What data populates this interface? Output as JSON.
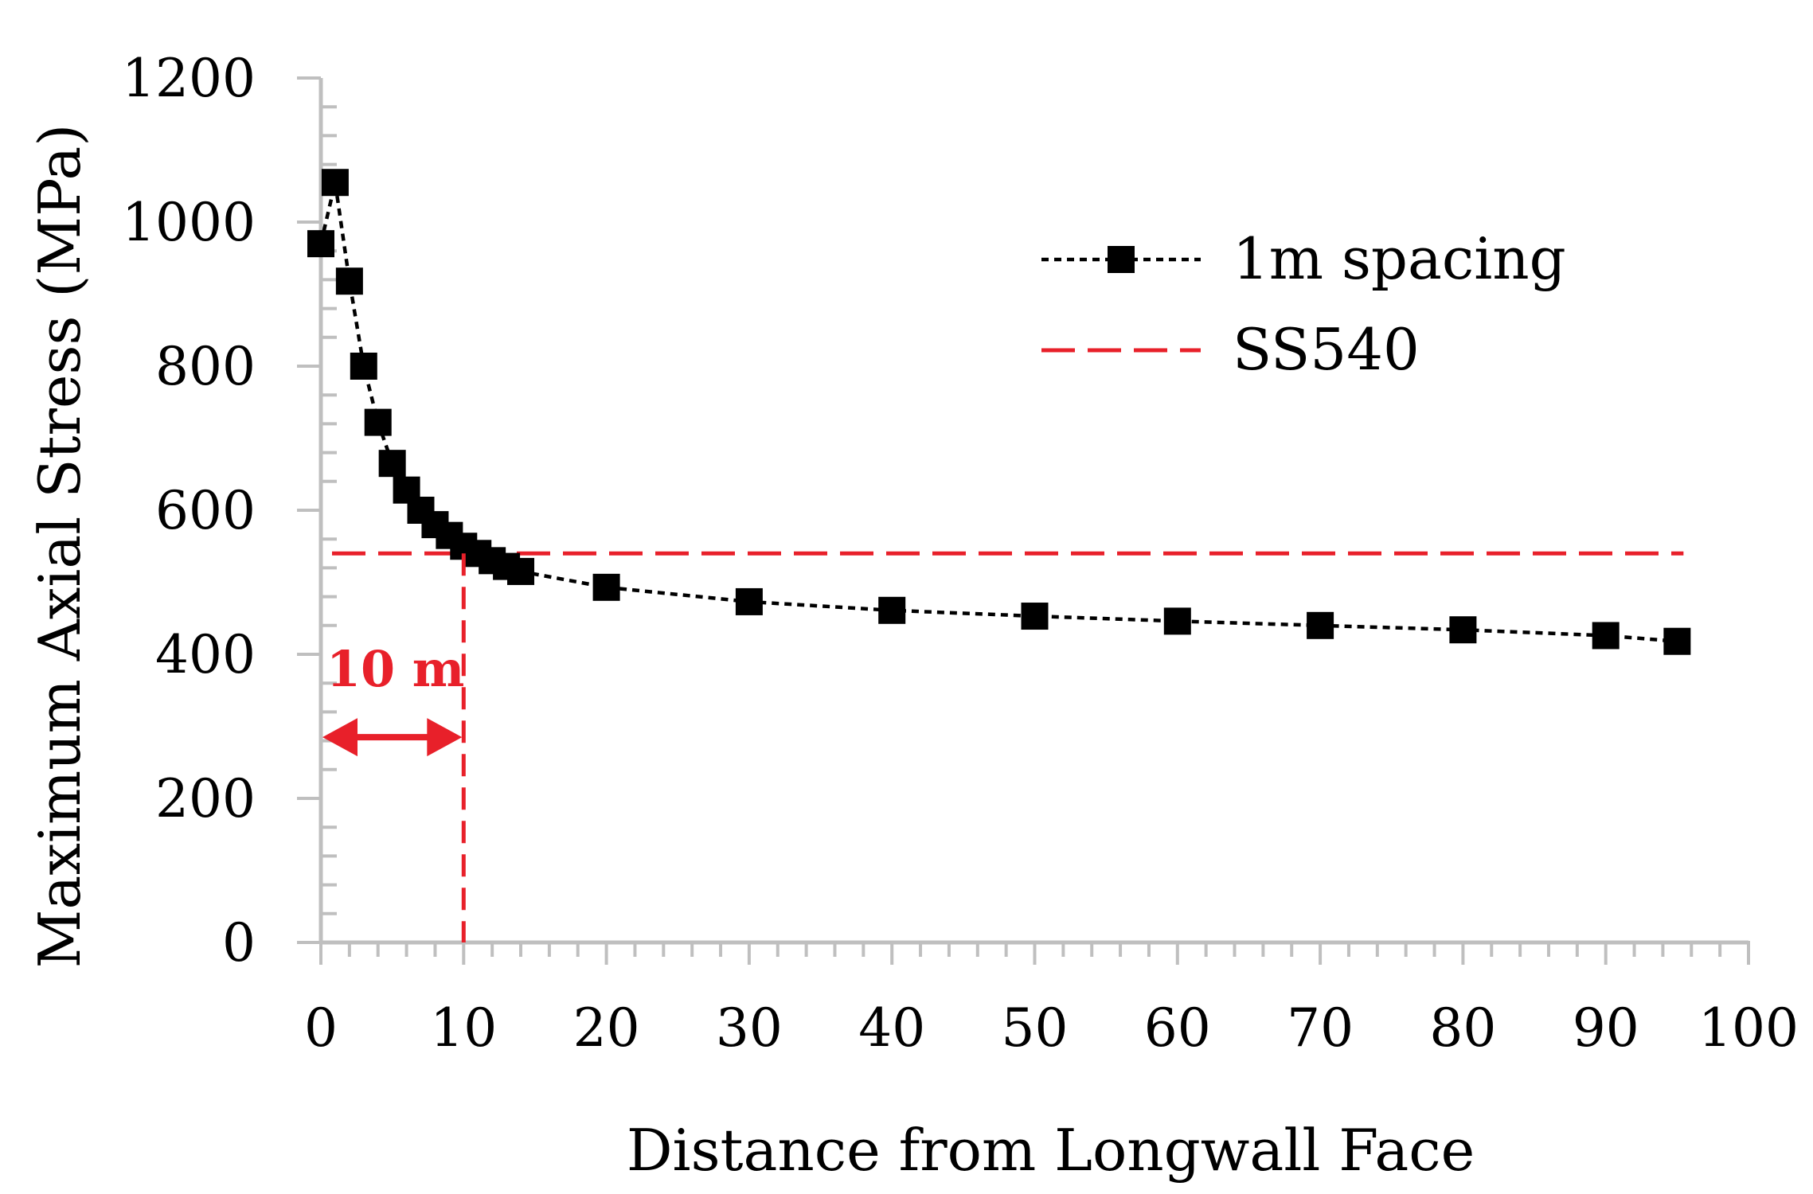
{
  "colors": {
    "axis": "#bfbfbf",
    "series": "#000000",
    "threshold": "#e8202a",
    "text": "#000000"
  },
  "chart_data": {
    "type": "line",
    "title": "",
    "xlabel": "Distance from Longwall Face",
    "ylabel": "Maximum Axial Stress (MPa)",
    "xlim": [
      0,
      100
    ],
    "ylim": [
      0,
      1200
    ],
    "x_major_ticks": [
      0,
      10,
      20,
      30,
      40,
      50,
      60,
      70,
      80,
      90,
      100
    ],
    "x_minor_step": 2,
    "y_major_ticks": [
      0,
      200,
      400,
      600,
      800,
      1000,
      1200
    ],
    "y_minor_step": 40,
    "grid": false,
    "legend_position": "top-right",
    "series": [
      {
        "name": "1m spacing",
        "style": "dotted line with square markers",
        "x": [
          0,
          1,
          2,
          3,
          4,
          5,
          6,
          7,
          8,
          9,
          10,
          11,
          12,
          13,
          14,
          20,
          30,
          40,
          50,
          60,
          70,
          80,
          90,
          95
        ],
        "y": [
          970,
          1055,
          918,
          800,
          722,
          665,
          628,
          600,
          580,
          565,
          550,
          540,
          530,
          522,
          515,
          493,
          473,
          461,
          453,
          446,
          440,
          434,
          426,
          418
        ]
      },
      {
        "name": "SS540",
        "style": "dashed horizontal line",
        "x": [
          0,
          95
        ],
        "y": [
          540,
          540
        ]
      }
    ],
    "annotations": [
      {
        "text": "10 m",
        "type": "double-arrow",
        "from_x": 0,
        "to_x": 10,
        "at_y": 285,
        "vertical_marker_x": 10
      }
    ]
  }
}
